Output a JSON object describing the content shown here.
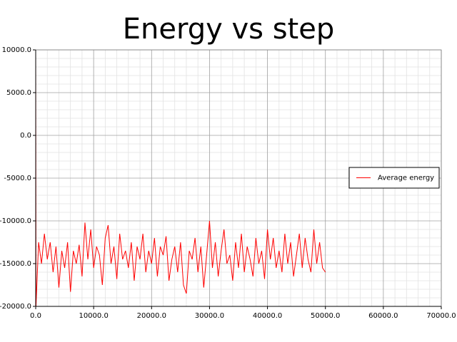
{
  "chart_data": {
    "type": "line",
    "title": "Energy vs step",
    "x": [
      0,
      50,
      500,
      1000,
      1500,
      2000,
      2500,
      3000,
      3500,
      4000,
      4500,
      5000,
      5500,
      6000,
      6500,
      7000,
      7500,
      8000,
      8500,
      9000,
      9500,
      10000,
      10500,
      11000,
      11500,
      12000,
      12500,
      13000,
      13500,
      14000,
      14500,
      15000,
      15500,
      16000,
      16500,
      17000,
      17500,
      18000,
      18500,
      19000,
      19500,
      20000,
      20500,
      21000,
      21500,
      22000,
      22500,
      23000,
      23500,
      24000,
      24500,
      25000,
      25500,
      26000,
      26500,
      27000,
      27500,
      28000,
      28500,
      29000,
      29500,
      30000,
      30500,
      31000,
      31500,
      32000,
      32500,
      33000,
      33500,
      34000,
      34500,
      35000,
      35500,
      36000,
      36500,
      37000,
      37500,
      38000,
      38500,
      39000,
      39500,
      40000,
      40500,
      41000,
      41500,
      42000,
      42500,
      43000,
      43500,
      44000,
      44500,
      45000,
      45500,
      46000,
      46500,
      47000,
      47500,
      48000,
      48500,
      49000,
      49500,
      50000
    ],
    "series": [
      {
        "name": "Average energy",
        "color": "#ff0000",
        "values": [
          10000,
          -20000,
          -12500,
          -15000,
          -11500,
          -14500,
          -12500,
          -16000,
          -13000,
          -17800,
          -13500,
          -15500,
          -12500,
          -18300,
          -13500,
          -15000,
          -12800,
          -16500,
          -10200,
          -14500,
          -11000,
          -15500,
          -13000,
          -14000,
          -17500,
          -12000,
          -10500,
          -15000,
          -13000,
          -16800,
          -11500,
          -14500,
          -13500,
          -15500,
          -12500,
          -17000,
          -13000,
          -14500,
          -11500,
          -16000,
          -13500,
          -15000,
          -12000,
          -16500,
          -13000,
          -14000,
          -11800,
          -17000,
          -14500,
          -13000,
          -16000,
          -12500,
          -17500,
          -18500,
          -13500,
          -14500,
          -12000,
          -16000,
          -13000,
          -17800,
          -14000,
          -10000,
          -15500,
          -12500,
          -16500,
          -13500,
          -11000,
          -15000,
          -14000,
          -17000,
          -12500,
          -15500,
          -11500,
          -16000,
          -13000,
          -14500,
          -16500,
          -12000,
          -15000,
          -13500,
          -16800,
          -11000,
          -14500,
          -12000,
          -15500,
          -13500,
          -16000,
          -11500,
          -15000,
          -12500,
          -16500,
          -14000,
          -11500,
          -15500,
          -12000,
          -14500,
          -16000,
          -11000,
          -15000,
          -12500,
          -15500,
          -16000
        ]
      }
    ],
    "xlim": [
      0,
      70000
    ],
    "ylim": [
      -20000,
      10000
    ],
    "xticks": [
      {
        "value": 0,
        "label": "0.0"
      },
      {
        "value": 10000,
        "label": "10000.0"
      },
      {
        "value": 20000,
        "label": "20000.0"
      },
      {
        "value": 30000,
        "label": "30000.0"
      },
      {
        "value": 40000,
        "label": "40000.0"
      },
      {
        "value": 50000,
        "label": "50000.0"
      },
      {
        "value": 60000,
        "label": "60000.0"
      },
      {
        "value": 70000,
        "label": "70000.0"
      }
    ],
    "yticks": [
      {
        "value": -20000,
        "label": "-20000.0"
      },
      {
        "value": -15000,
        "label": "-15000.0"
      },
      {
        "value": -10000,
        "label": "-10000.0"
      },
      {
        "value": -5000,
        "label": "-5000.0"
      },
      {
        "value": 0,
        "label": "0.0"
      },
      {
        "value": 5000,
        "label": "5000.0"
      },
      {
        "value": 10000,
        "label": "10000.0"
      }
    ],
    "grid": true,
    "minor_grid": 5,
    "legend": "right"
  }
}
